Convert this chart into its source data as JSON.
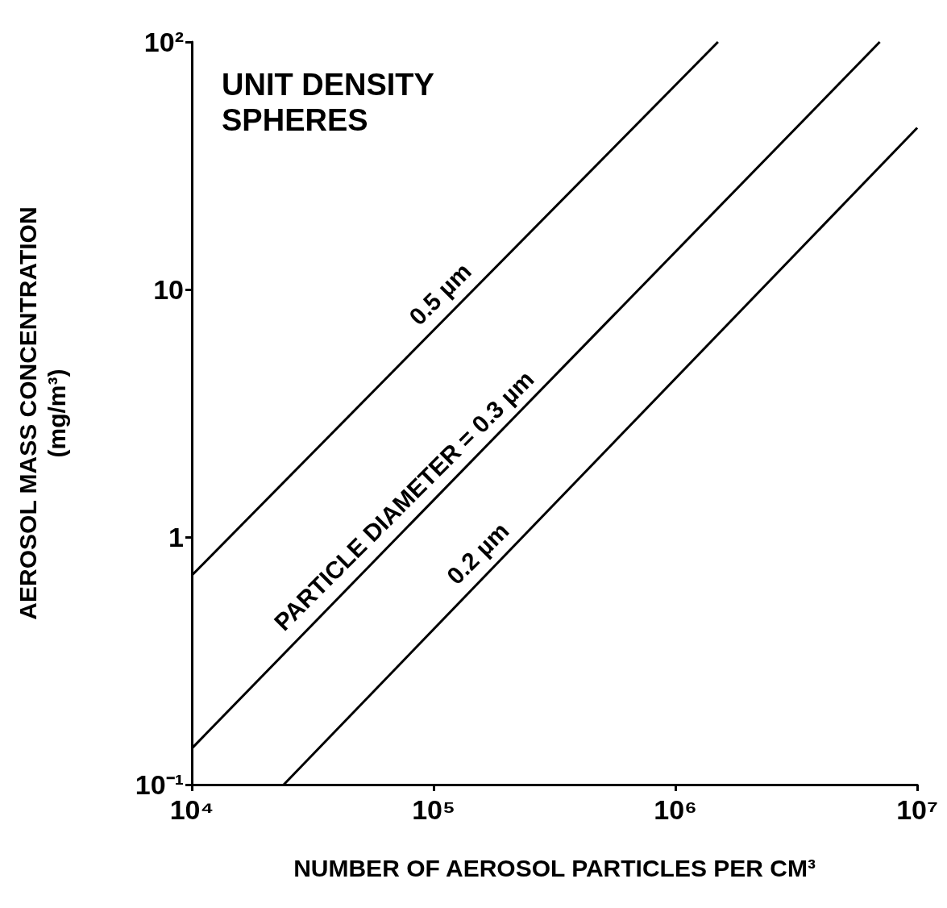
{
  "chart_data": {
    "type": "line",
    "title": "UNIT DENSITY SPHERES",
    "xlabel": "NUMBER OF AEROSOL PARTICLES PER CM³",
    "ylabel": "AEROSOL MASS CONCENTRATION\n(mg/m³)",
    "log": "xy",
    "grid": false,
    "marker": "none",
    "line_style": "solid",
    "xlim": [
      10000,
      10000000
    ],
    "ylim": [
      0.1,
      100
    ],
    "xticks": [
      {
        "value": 10000,
        "label": "10⁴"
      },
      {
        "value": 100000,
        "label": "10⁵"
      },
      {
        "value": 1000000,
        "label": "10⁶"
      },
      {
        "value": 10000000,
        "label": "10⁷"
      }
    ],
    "yticks": [
      {
        "value": 0.1,
        "label": "10⁻¹"
      },
      1,
      10,
      {
        "value": 100,
        "label": "10²"
      }
    ],
    "series": [
      {
        "color": "#000000",
        "x": [
          10000,
          1500000
        ],
        "values": [
          0.7,
          100
        ]
      },
      {
        "color": "#000000",
        "x": [
          10000,
          7000000
        ],
        "values": [
          0.14,
          100
        ]
      },
      {
        "color": "#000000",
        "x": [
          24000,
          10000000
        ],
        "values": [
          0.1,
          45
        ]
      }
    ],
    "annotations": [
      "0.5 µm",
      "PARTICLE DIAMETER = 0.3 µm",
      "0.2 µm"
    ]
  }
}
